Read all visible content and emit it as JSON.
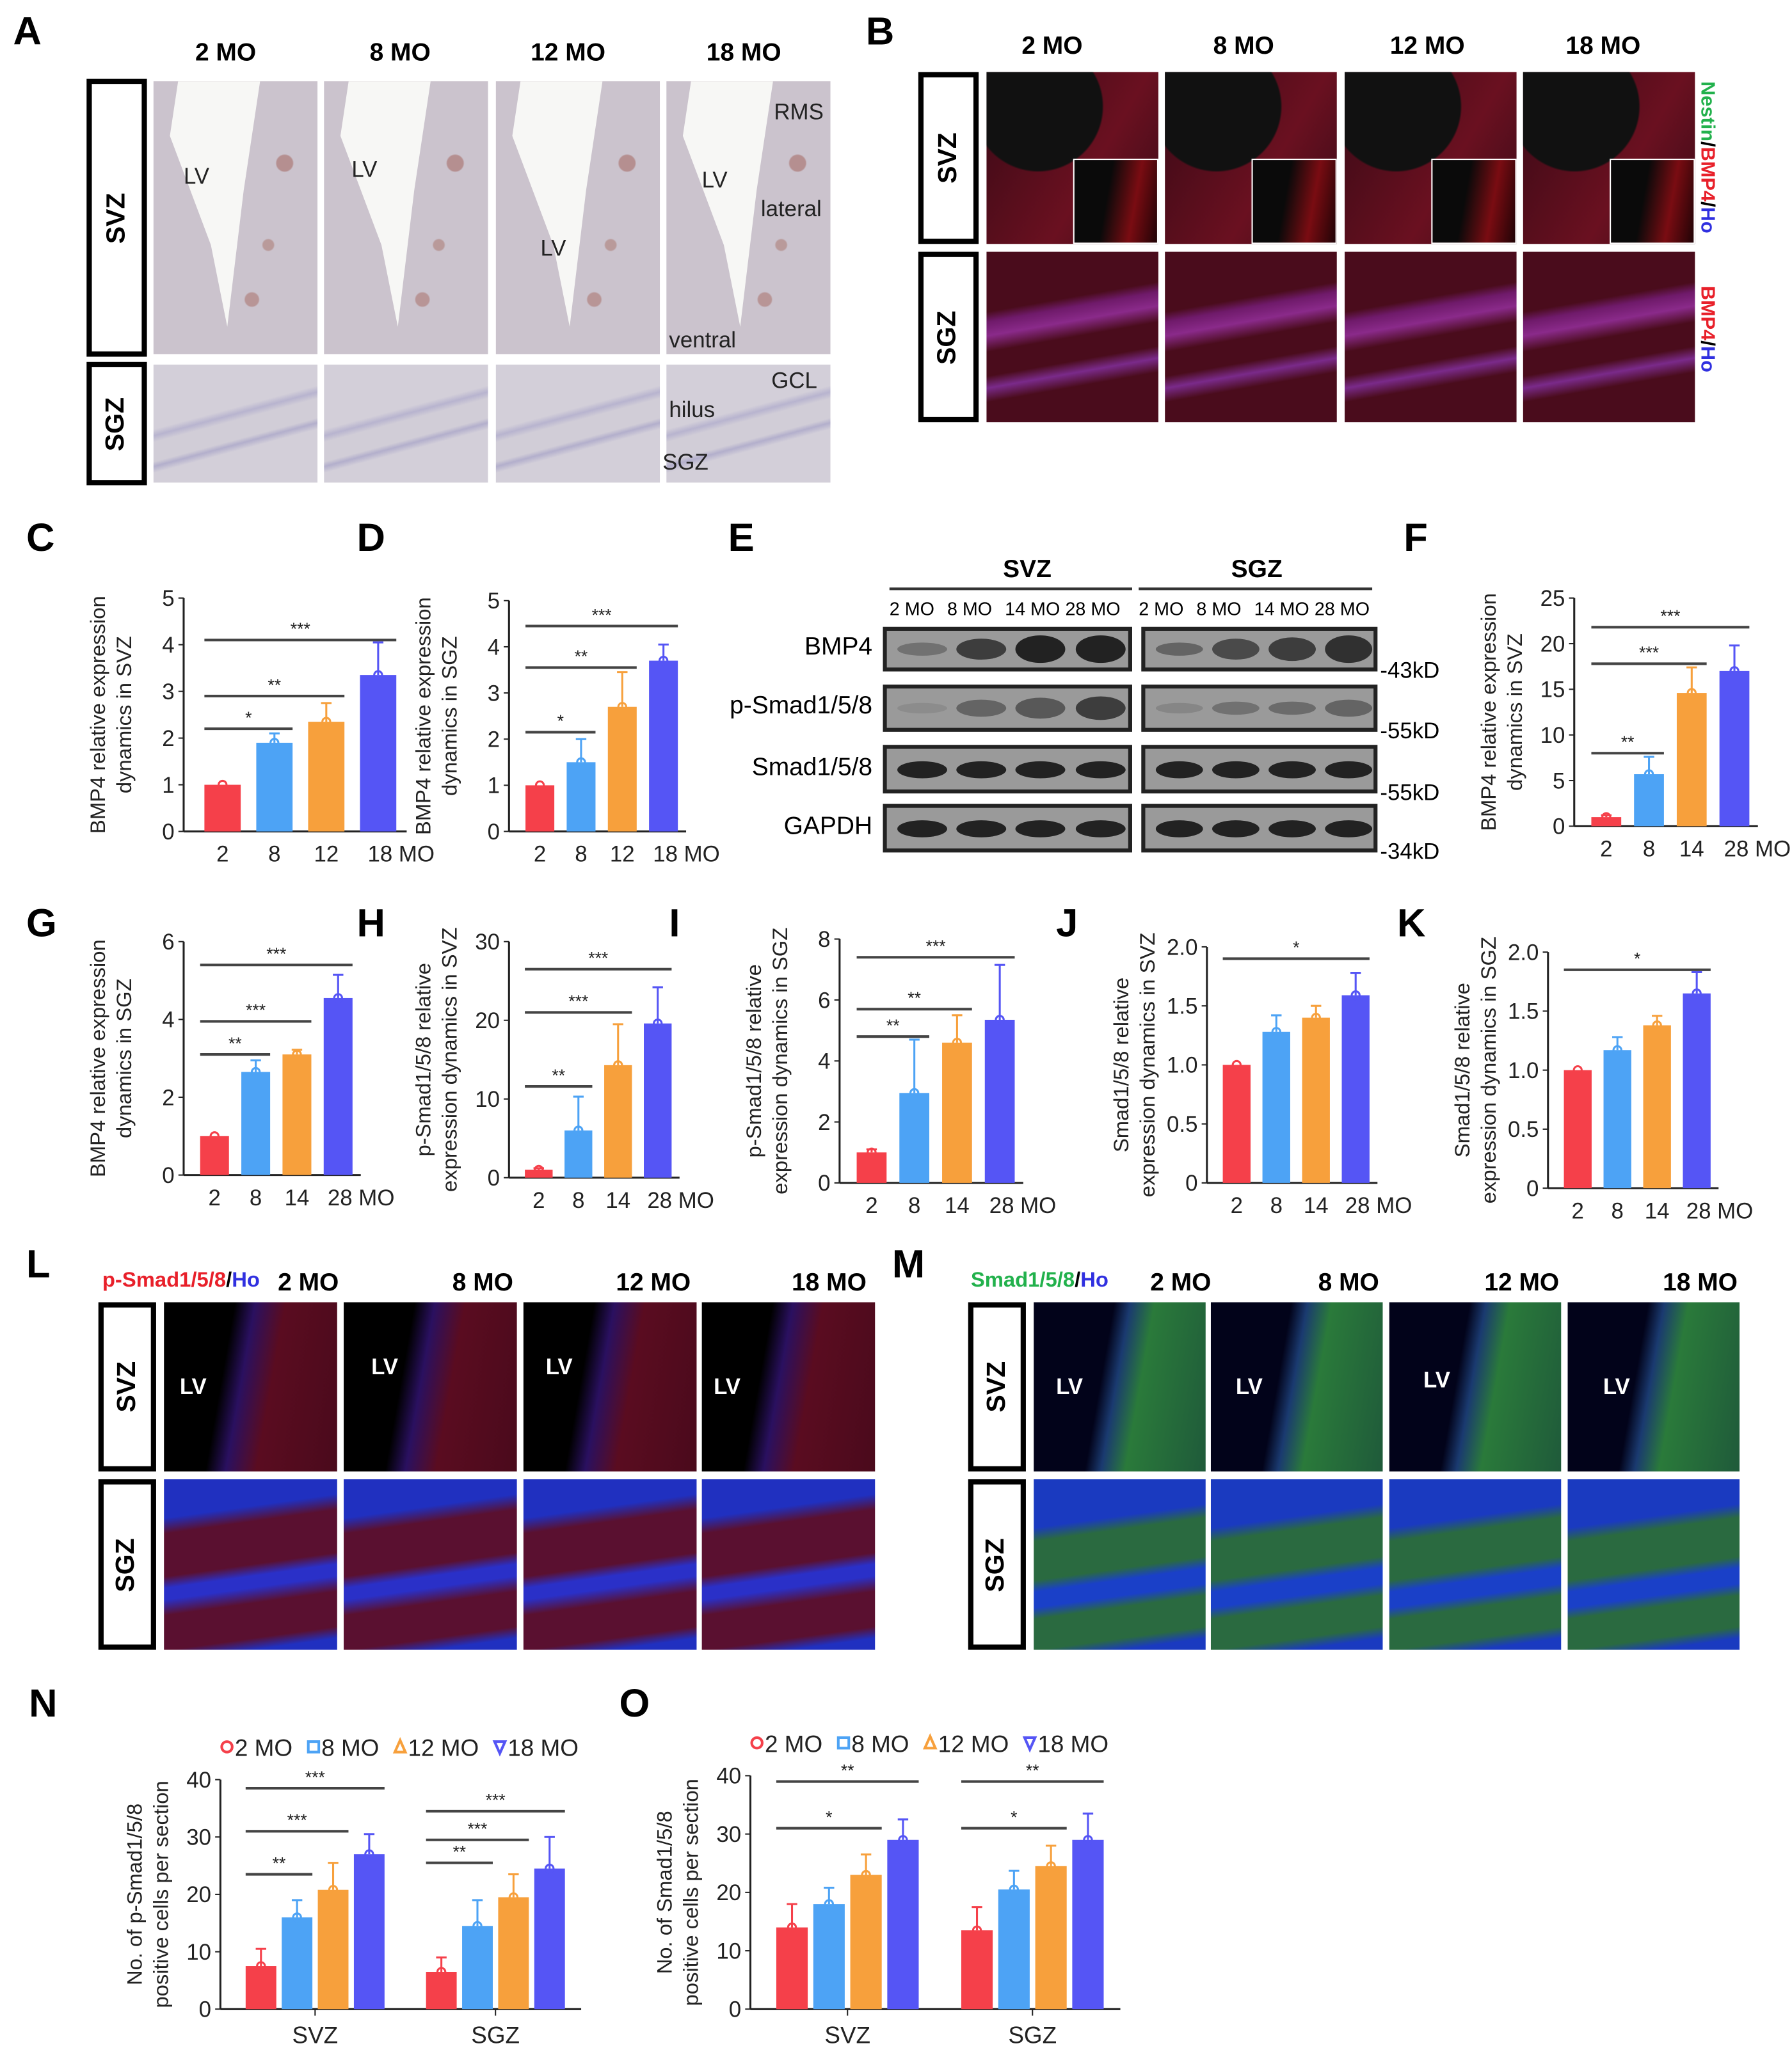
{
  "panel_letters": [
    "A",
    "B",
    "C",
    "D",
    "E",
    "F",
    "G",
    "H",
    "I",
    "J",
    "K",
    "L",
    "M",
    "N",
    "O"
  ],
  "colors": {
    "mo2": "#f5404a",
    "mo8": "#4da3f5",
    "mo12": "#f7a03c",
    "mo18": "#5555f5",
    "nestin": "#22b14c",
    "bmp4": "#e8202a",
    "ho": "#3030e0"
  },
  "panelA": {
    "headers": [
      "2 MO",
      "8 MO",
      "12 MO",
      "18 MO"
    ],
    "rows": [
      "SVZ",
      "SGZ"
    ],
    "overlays": [
      "LV",
      "LV",
      "LV",
      "LV",
      "RMS",
      "lateral",
      "ventral",
      "hilus",
      "GCL",
      "SGZ"
    ]
  },
  "panelB": {
    "headers": [
      "2 MO",
      "8 MO",
      "12 MO",
      "18 MO"
    ],
    "rows": [
      "SVZ",
      "SGZ"
    ],
    "stain_top": {
      "nestin": "Nestin",
      "sep1": "/",
      "bmp4": "BMP4",
      "sep2": "/",
      "ho": "Ho"
    },
    "stain_bottom": {
      "bmp4": "BMP4",
      "sep": "/",
      "ho": "Ho"
    }
  },
  "panelE": {
    "groups": [
      "SVZ",
      "SGZ"
    ],
    "lanes": [
      "2 MO",
      "8 MO",
      "14 MO",
      "28 MO",
      "2 MO",
      "8 MO",
      "14 MO",
      "28 MO"
    ],
    "rows": [
      "BMP4",
      "p-Smad1/5/8",
      "Smad1/5/8",
      "GAPDH"
    ],
    "kd": [
      "43kD",
      "55kD",
      "55kD",
      "34kD"
    ]
  },
  "panelL": {
    "stain": {
      "p": "p-Smad1/5/8",
      "sep": "/",
      "ho": "Ho"
    },
    "headers": [
      "2 MO",
      "8 MO",
      "12 MO",
      "18 MO"
    ],
    "rows": [
      "SVZ",
      "SGZ"
    ],
    "overlays": [
      "LV",
      "LV",
      "LV",
      "LV"
    ]
  },
  "panelM": {
    "stain": {
      "p": "Smad1/5/8",
      "sep": "/",
      "ho": "Ho"
    },
    "headers": [
      "2 MO",
      "8 MO",
      "12 MO",
      "18 MO"
    ],
    "rows": [
      "SVZ",
      "SGZ"
    ],
    "overlays": [
      "LV",
      "LV",
      "LV",
      "LV"
    ]
  },
  "chart_data": [
    {
      "id": "C",
      "type": "bar",
      "ylabel": [
        "BMP4 relative expression",
        "dynamics in SVZ"
      ],
      "ylim": [
        0,
        5
      ],
      "ticks": [
        0,
        1,
        2,
        3,
        4,
        5
      ],
      "categories": [
        "2",
        "8",
        "12",
        "18 MO"
      ],
      "values": [
        1,
        1.9,
        2.35,
        3.35
      ],
      "err": [
        0,
        0.2,
        0.4,
        0.7
      ],
      "sig": [
        {
          "from": 0,
          "to": 1,
          "label": "*",
          "y": 2.2
        },
        {
          "from": 0,
          "to": 2,
          "label": "**",
          "y": 2.9
        },
        {
          "from": 0,
          "to": 3,
          "label": "***",
          "y": 4.1
        }
      ]
    },
    {
      "id": "D",
      "type": "bar",
      "ylabel": [
        "BMP4 relative expression",
        "dynamics in SGZ"
      ],
      "ylim": [
        0,
        5
      ],
      "ticks": [
        0,
        1,
        2,
        3,
        4,
        5
      ],
      "categories": [
        "2",
        "8",
        "12",
        "18 MO"
      ],
      "values": [
        1,
        1.5,
        2.7,
        3.7
      ],
      "err": [
        0,
        0.5,
        0.75,
        0.35
      ],
      "sig": [
        {
          "from": 0,
          "to": 1,
          "label": "*",
          "y": 2.15
        },
        {
          "from": 0,
          "to": 2,
          "label": "**",
          "y": 3.55
        },
        {
          "from": 0,
          "to": 3,
          "label": "***",
          "y": 4.45
        }
      ]
    },
    {
      "id": "F",
      "type": "bar",
      "ylabel": [
        "BMP4 relative expression",
        "dynamics  in SVZ"
      ],
      "ylim": [
        0,
        25
      ],
      "ticks": [
        0,
        5,
        10,
        15,
        20,
        25
      ],
      "categories": [
        "2",
        "8",
        "14",
        "28 MO"
      ],
      "values": [
        1,
        5.7,
        14.6,
        17
      ],
      "err": [
        0.2,
        1.9,
        2.8,
        2.8
      ],
      "sig": [
        {
          "from": 0,
          "to": 1,
          "label": "**",
          "y": 8
        },
        {
          "from": 0,
          "to": 2,
          "label": "***",
          "y": 17.8
        },
        {
          "from": 0,
          "to": 3,
          "label": "***",
          "y": 21.8
        }
      ]
    },
    {
      "id": "G",
      "type": "bar",
      "ylabel": [
        "BMP4 relative expression",
        "dynamics in SGZ"
      ],
      "ylim": [
        0,
        6
      ],
      "ticks": [
        0,
        2,
        4,
        6
      ],
      "categories": [
        "2",
        "8",
        "14",
        "28 MO"
      ],
      "values": [
        1,
        2.65,
        3.1,
        4.55
      ],
      "err": [
        0,
        0.3,
        0.12,
        0.6
      ],
      "sig": [
        {
          "from": 0,
          "to": 1,
          "label": "**",
          "y": 3.1
        },
        {
          "from": 0,
          "to": 2,
          "label": "***",
          "y": 3.95
        },
        {
          "from": 0,
          "to": 3,
          "label": "***",
          "y": 5.4
        }
      ]
    },
    {
      "id": "H",
      "type": "bar",
      "ylabel": [
        "p-Smad1/5/8 relative",
        "expression  dynamics in SVZ"
      ],
      "ylim": [
        0,
        30
      ],
      "ticks": [
        0,
        10,
        20,
        30
      ],
      "categories": [
        "2",
        "8",
        "14",
        "28 MO"
      ],
      "values": [
        1,
        6,
        14.3,
        19.6
      ],
      "err": [
        0.2,
        4.3,
        5.2,
        4.6
      ],
      "sig": [
        {
          "from": 0,
          "to": 1,
          "label": "**",
          "y": 11.6
        },
        {
          "from": 0,
          "to": 2,
          "label": "***",
          "y": 21
        },
        {
          "from": 0,
          "to": 3,
          "label": "***",
          "y": 26.5
        }
      ]
    },
    {
      "id": "I",
      "type": "bar",
      "ylabel": [
        "p-Smad1/5/8 relative",
        "expression  dynamics in SGZ"
      ],
      "ylim": [
        0,
        8
      ],
      "ticks": [
        0,
        2,
        4,
        6,
        8
      ],
      "categories": [
        "2",
        "8",
        "14",
        "28 MO"
      ],
      "values": [
        1,
        2.95,
        4.6,
        5.35
      ],
      "err": [
        0.1,
        1.75,
        0.9,
        1.8
      ],
      "sig": [
        {
          "from": 0,
          "to": 1,
          "label": "**",
          "y": 4.8
        },
        {
          "from": 0,
          "to": 2,
          "label": "**",
          "y": 5.7
        },
        {
          "from": 0,
          "to": 3,
          "label": "***",
          "y": 7.4
        }
      ]
    },
    {
      "id": "J",
      "type": "bar",
      "ylabel": [
        "Smad1/5/8 relative",
        "expression  dynamics in SVZ"
      ],
      "ylim": [
        0,
        2
      ],
      "ticks": [
        "0",
        "0.5",
        "1.0",
        "1.5",
        "2.0"
      ],
      "categories": [
        "2",
        "8",
        "14",
        "28 MO"
      ],
      "values": [
        1,
        1.28,
        1.4,
        1.59
      ],
      "err": [
        0,
        0.14,
        0.1,
        0.19
      ],
      "sig": [
        {
          "from": 0,
          "to": 3,
          "label": "*",
          "y": 1.9
        }
      ]
    },
    {
      "id": "K",
      "type": "bar",
      "ylabel": [
        "Smad1/5/8 relative",
        "expression  dynamics in SGZ"
      ],
      "ylim": [
        0,
        2
      ],
      "ticks": [
        "0",
        "0.5",
        "1.0",
        "1.5",
        "2.0"
      ],
      "categories": [
        "2",
        "8",
        "14",
        "28 MO"
      ],
      "values": [
        1,
        1.17,
        1.38,
        1.65
      ],
      "err": [
        0,
        0.11,
        0.08,
        0.18
      ],
      "sig": [
        {
          "from": 0,
          "to": 3,
          "label": "*",
          "y": 1.85
        }
      ]
    },
    {
      "id": "N",
      "type": "grouped_bar",
      "ylabel": [
        "No. of p-Smad1/5/8",
        "positive cells per section"
      ],
      "ylim": [
        0,
        40
      ],
      "ticks": [
        0,
        10,
        20,
        30,
        40
      ],
      "groups": [
        "SVZ",
        "SGZ"
      ],
      "legend": [
        "2 MO",
        "8 MO",
        "12 MO",
        "18 MO"
      ],
      "legend_position": "top",
      "series_values": [
        [
          7.5,
          16,
          20.8,
          27
        ],
        [
          6.5,
          14.5,
          19.5,
          24.5
        ]
      ],
      "err": [
        [
          3,
          3,
          4.7,
          3.5
        ],
        [
          2.5,
          4.5,
          4,
          5.5
        ]
      ],
      "sig": [
        {
          "group": 0,
          "from": 0,
          "to": 1,
          "label": "**",
          "y": 23.5
        },
        {
          "group": 0,
          "from": 0,
          "to": 2,
          "label": "***",
          "y": 31
        },
        {
          "group": 0,
          "from": 0,
          "to": 3,
          "label": "***",
          "y": 38.5
        },
        {
          "group": 1,
          "from": 0,
          "to": 1,
          "label": "**",
          "y": 25.5
        },
        {
          "group": 1,
          "from": 0,
          "to": 2,
          "label": "***",
          "y": 29.5
        },
        {
          "group": 1,
          "from": 0,
          "to": 3,
          "label": "***",
          "y": 34.5
        }
      ]
    },
    {
      "id": "O",
      "type": "grouped_bar",
      "ylabel": [
        "No. of Smad1/5/8",
        "positive cells per section"
      ],
      "ylim": [
        0,
        40
      ],
      "ticks": [
        0,
        10,
        20,
        30,
        40
      ],
      "groups": [
        "SVZ",
        "SGZ"
      ],
      "legend": [
        "2 MO",
        "8 MO",
        "12 MO",
        "18 MO"
      ],
      "legend_position": "top",
      "series_values": [
        [
          14,
          18,
          23,
          29
        ],
        [
          13.5,
          20.5,
          24.5,
          29
        ]
      ],
      "err": [
        [
          4,
          2.8,
          3.5,
          3.5
        ],
        [
          4,
          3.2,
          3.5,
          4.5
        ]
      ],
      "sig": [
        {
          "group": 0,
          "from": 0,
          "to": 2,
          "label": "*",
          "y": 31
        },
        {
          "group": 0,
          "from": 0,
          "to": 3,
          "label": "**",
          "y": 39
        },
        {
          "group": 1,
          "from": 0,
          "to": 2,
          "label": "*",
          "y": 31
        },
        {
          "group": 1,
          "from": 0,
          "to": 3,
          "label": "**",
          "y": 39
        }
      ]
    }
  ]
}
